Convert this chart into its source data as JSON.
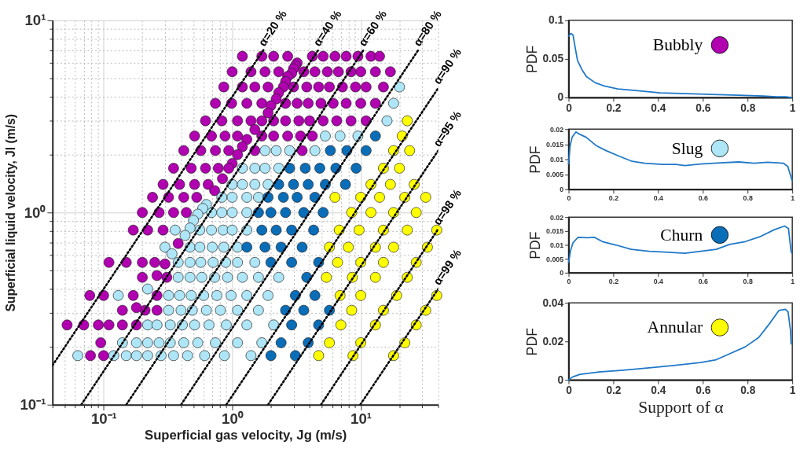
{
  "chart_data": [
    {
      "type": "scatter",
      "xlabel": "Superficial gas velocity, Jg (m/s)",
      "ylabel": "Superficial liquid velocity, Jl (m/s)",
      "log": "xy",
      "grid": true,
      "marker": "circle",
      "xlim": [
        0.04,
        40
      ],
      "ylim": [
        0.1,
        10
      ],
      "xticks": [
        {
          "value": 0.04,
          "label": null
        },
        {
          "value": 0.05,
          "label": null
        },
        {
          "value": 0.06,
          "label": null
        },
        {
          "value": 0.07,
          "label": null
        },
        {
          "value": 0.08,
          "label": null
        },
        {
          "value": 0.09,
          "label": null
        },
        {
          "value": 0.1,
          "label": "10⁻¹"
        },
        {
          "value": 0.2,
          "label": null
        },
        {
          "value": 0.3,
          "label": null
        },
        {
          "value": 0.4,
          "label": null
        },
        {
          "value": 0.5,
          "label": null
        },
        {
          "value": 0.6,
          "label": null
        },
        {
          "value": 0.7,
          "label": null
        },
        {
          "value": 0.8,
          "label": null
        },
        {
          "value": 0.9,
          "label": null
        },
        {
          "value": 1,
          "label": "10⁰"
        },
        {
          "value": 2,
          "label": null
        },
        {
          "value": 3,
          "label": null
        },
        {
          "value": 4,
          "label": null
        },
        {
          "value": 5,
          "label": null
        },
        {
          "value": 6,
          "label": null
        },
        {
          "value": 7,
          "label": null
        },
        {
          "value": 8,
          "label": null
        },
        {
          "value": 9,
          "label": null
        },
        {
          "value": 10,
          "label": "10¹"
        },
        {
          "value": 20,
          "label": null
        },
        {
          "value": 30,
          "label": null
        },
        {
          "value": 40,
          "label": null
        }
      ],
      "yticks": [
        {
          "value": 0.1,
          "label": "10⁻¹"
        },
        {
          "value": 0.2,
          "label": null
        },
        {
          "value": 0.3,
          "label": null
        },
        {
          "value": 0.4,
          "label": null
        },
        {
          "value": 0.5,
          "label": null
        },
        {
          "value": 0.6,
          "label": null
        },
        {
          "value": 0.7,
          "label": null
        },
        {
          "value": 0.8,
          "label": null
        },
        {
          "value": 0.9,
          "label": null
        },
        {
          "value": 1,
          "label": "10⁰"
        },
        {
          "value": 2,
          "label": null
        },
        {
          "value": 3,
          "label": null
        },
        {
          "value": 4,
          "label": null
        },
        {
          "value": 5,
          "label": null
        },
        {
          "value": 6,
          "label": null
        },
        {
          "value": 7,
          "label": null
        },
        {
          "value": 8,
          "label": null
        },
        {
          "value": 9,
          "label": null
        },
        {
          "value": 10,
          "label": "10¹"
        }
      ],
      "series": [
        {
          "type": "scatter",
          "color": "#b000b0",
          "x": [
            1.2,
            1.7,
            2.1,
            2.7,
            4.2,
            5.1,
            6.3,
            7.7,
            9.5,
            12,
            14,
            1.0,
            1.4,
            1.8,
            2.3,
            3.6,
            4.4,
            5.5,
            6.7,
            8.4,
            10,
            13,
            17,
            0.86,
            1.2,
            1.5,
            1.9,
            3.0,
            3.8,
            4.7,
            5.7,
            7.2,
            9.1,
            11,
            15,
            0.74,
            0.99,
            1.3,
            1.7,
            2.6,
            3.2,
            3.9,
            4.9,
            6.1,
            7.7,
            10,
            13,
            0.62,
            0.83,
            1.1,
            1.4,
            2.1,
            2.6,
            3.3,
            4.0,
            5.1,
            6.5,
            8.4,
            11,
            0.51,
            0.69,
            0.88,
            1.1,
            1.7,
            2.1,
            2.7,
            3.4,
            4.2,
            0.42,
            0.57,
            0.74,
            0.94,
            1.5,
            3.5,
            0.35,
            0.48,
            0.62,
            0.78,
            0.29,
            0.39,
            0.51,
            0.65,
            0.24,
            0.32,
            0.42,
            0.53,
            0.2,
            0.27,
            0.35,
            0.44,
            0.17,
            0.22,
            0.29,
            0.11,
            0.15,
            0.2,
            0.25,
            0.2,
            0.31,
            0.078,
            0.1,
            0.17,
            0.26,
            0.14,
            0.21,
            0.26,
            0.052,
            0.07,
            0.091,
            0.11,
            0.14,
            0.18,
            0.095,
            0.079,
            0.1,
            3.2,
            3.1,
            3.0,
            2.9,
            2.7,
            2.6,
            2.5,
            2.3,
            2.2,
            2.0,
            1.9,
            1.7,
            1.5,
            1.3,
            1.2,
            1.1,
            1.0,
            0.94,
            0.84,
            0.73,
            0.38,
            0.3,
            0.26,
            0.18
          ],
          "values": [
            6.5,
            6.5,
            6.5,
            6.5,
            6.5,
            6.5,
            6.5,
            6.5,
            6.5,
            6.5,
            6.5,
            5.4,
            5.4,
            5.4,
            5.4,
            5.4,
            5.4,
            5.4,
            5.4,
            5.4,
            5.4,
            5.4,
            5.4,
            4.5,
            4.5,
            4.5,
            4.5,
            4.5,
            4.5,
            4.5,
            4.5,
            4.5,
            4.5,
            4.5,
            4.5,
            3.7,
            3.7,
            3.7,
            3.7,
            3.7,
            3.7,
            3.7,
            3.7,
            3.7,
            3.7,
            3.7,
            3.7,
            3.0,
            3.0,
            3.0,
            3.0,
            3.0,
            3.0,
            3.0,
            3.0,
            3.0,
            3.0,
            3.0,
            3.0,
            2.5,
            2.5,
            2.5,
            2.5,
            2.5,
            2.5,
            2.5,
            2.5,
            2.5,
            2.1,
            2.1,
            2.1,
            2.1,
            2.1,
            2.1,
            1.7,
            1.7,
            1.7,
            1.7,
            1.4,
            1.4,
            1.4,
            1.4,
            1.2,
            1.2,
            1.2,
            1.2,
            1.0,
            1.0,
            1.0,
            1.0,
            0.81,
            0.81,
            0.81,
            0.55,
            0.55,
            0.55,
            0.55,
            0.46,
            0.46,
            0.37,
            0.37,
            0.37,
            0.37,
            0.31,
            0.31,
            0.31,
            0.26,
            0.26,
            0.26,
            0.26,
            0.26,
            0.26,
            0.21,
            0.18,
            0.18,
            6.0,
            5.8,
            5.6,
            5.3,
            5.1,
            4.8,
            4.5,
            4.2,
            3.9,
            3.6,
            3.3,
            3.0,
            2.7,
            2.4,
            2.2,
            2.0,
            1.8,
            1.7,
            1.5,
            1.3,
            0.69,
            0.54,
            0.47,
            0.32
          ]
        },
        {
          "type": "scatter",
          "color": "#aee6f7",
          "x": [
            20,
            18,
            16,
            5.3,
            6.9,
            9.5,
            1.8,
            2.2,
            2.8,
            4.4,
            1.2,
            1.5,
            1.8,
            2.3,
            1.0,
            1.2,
            1.5,
            1.9,
            0.83,
            1.0,
            1.3,
            1.6,
            0.69,
            0.83,
            1.0,
            1.3,
            0.36,
            0.56,
            0.69,
            0.85,
            1.0,
            1.3,
            0.3,
            0.47,
            0.56,
            0.7,
            0.86,
            1.1,
            0.38,
            0.47,
            0.57,
            0.71,
            0.89,
            1.1,
            1.5,
            0.38,
            0.47,
            0.58,
            0.73,
            0.92,
            1.2,
            1.6,
            2.3,
            0.13,
            0.32,
            0.39,
            0.48,
            0.6,
            0.76,
            0.98,
            1.3,
            1.9,
            0.32,
            0.4,
            0.49,
            0.63,
            0.81,
            1.1,
            1.6,
            0.22,
            0.26,
            0.33,
            0.41,
            0.51,
            0.66,
            0.9,
            1.3,
            2.1,
            0.14,
            0.18,
            0.22,
            0.27,
            0.33,
            0.42,
            0.54,
            0.74,
            1.1,
            1.7,
            0.063,
            0.12,
            0.15,
            0.18,
            0.22,
            0.28,
            0.35,
            0.45,
            0.61,
            0.87,
            1.4,
            0.63,
            0.59,
            0.54,
            0.5,
            0.47,
            0.43,
            0.34,
            0.22
          ],
          "values": [
            4.5,
            3.7,
            3.0,
            2.5,
            2.5,
            2.5,
            2.1,
            2.1,
            2.1,
            2.1,
            1.7,
            1.7,
            1.7,
            1.7,
            1.4,
            1.4,
            1.4,
            1.4,
            1.2,
            1.2,
            1.2,
            1.2,
            1.0,
            1.0,
            1.0,
            1.0,
            0.81,
            0.81,
            0.81,
            0.81,
            0.81,
            0.81,
            0.66,
            0.66,
            0.66,
            0.66,
            0.66,
            0.66,
            0.55,
            0.55,
            0.55,
            0.55,
            0.55,
            0.55,
            0.55,
            0.46,
            0.46,
            0.46,
            0.46,
            0.46,
            0.46,
            0.46,
            0.46,
            0.37,
            0.37,
            0.37,
            0.37,
            0.37,
            0.37,
            0.37,
            0.37,
            0.37,
            0.31,
            0.31,
            0.31,
            0.31,
            0.31,
            0.31,
            0.31,
            0.26,
            0.26,
            0.26,
            0.26,
            0.26,
            0.26,
            0.26,
            0.26,
            0.26,
            0.21,
            0.21,
            0.21,
            0.21,
            0.21,
            0.21,
            0.21,
            0.21,
            0.21,
            0.21,
            0.18,
            0.18,
            0.18,
            0.18,
            0.18,
            0.18,
            0.18,
            0.18,
            0.18,
            0.18,
            0.18,
            1.1,
            1.05,
            0.98,
            0.91,
            0.83,
            0.76,
            0.61,
            0.4
          ]
        },
        {
          "type": "scatter",
          "color": "#0a6db8",
          "x": [
            13,
            5.8,
            7.8,
            11,
            2.8,
            3.7,
            4.8,
            6.4,
            9.2,
            2.3,
            3.0,
            3.9,
            5.3,
            7.6,
            1.9,
            2.5,
            3.2,
            4.4,
            1.6,
            2.0,
            2.6,
            3.6,
            5.1,
            1.7,
            2.2,
            2.9,
            4.3,
            1.3,
            1.8,
            2.4,
            3.5,
            2.0,
            2.9,
            4.7,
            3.8,
            3.1,
            4.4,
            2.6,
            3.6,
            5.7,
            2.9,
            4.7,
            2.4,
            3.9,
            2.0,
            3.1
          ],
          "values": [
            2.5,
            2.1,
            2.1,
            2.1,
            1.7,
            1.7,
            1.7,
            1.7,
            1.7,
            1.4,
            1.4,
            1.4,
            1.4,
            1.4,
            1.2,
            1.2,
            1.2,
            1.2,
            1.0,
            1.0,
            1.0,
            1.0,
            1.0,
            0.81,
            0.81,
            0.81,
            0.81,
            0.66,
            0.66,
            0.66,
            0.66,
            0.55,
            0.55,
            0.55,
            0.46,
            0.37,
            0.37,
            0.31,
            0.31,
            0.31,
            0.26,
            0.26,
            0.21,
            0.21,
            0.18,
            0.18
          ]
        },
        {
          "type": "scatter",
          "color": "#ffff00",
          "x": [
            23,
            21,
            18,
            24,
            15,
            20,
            12,
            17,
            26,
            6.3,
            10,
            14,
            22,
            32,
            8.5,
            12,
            18,
            27,
            6.8,
            9.7,
            15,
            23,
            39,
            5.7,
            8.0,
            13,
            18,
            33,
            6.6,
            10,
            15,
            27,
            5.4,
            8.6,
            13,
            23,
            6.9,
            10,
            19,
            39,
            8.5,
            15,
            32,
            7.0,
            13,
            27,
            5.7,
            10,
            22,
            4.7,
            8.7,
            18
          ],
          "values": [
            3.0,
            2.5,
            2.1,
            2.1,
            1.7,
            1.7,
            1.4,
            1.4,
            1.4,
            1.2,
            1.2,
            1.2,
            1.2,
            1.2,
            1.0,
            1.0,
            1.0,
            1.0,
            0.81,
            0.81,
            0.81,
            0.81,
            0.81,
            0.66,
            0.66,
            0.66,
            0.66,
            0.66,
            0.55,
            0.55,
            0.55,
            0.55,
            0.46,
            0.46,
            0.46,
            0.46,
            0.37,
            0.37,
            0.37,
            0.37,
            0.31,
            0.31,
            0.31,
            0.26,
            0.26,
            0.26,
            0.21,
            0.21,
            0.21,
            0.18,
            0.18,
            0.18
          ]
        },
        {
          "type": "line",
          "name": "α=20 %",
          "color": "#000000",
          "line_style": "dotted",
          "marker": "none",
          "x": [
            0.04,
            1.75
          ],
          "values": [
            0.16,
            7.0
          ]
        },
        {
          "type": "line",
          "name": "α=40 %",
          "color": "#000000",
          "line_style": "dotted",
          "marker": "none",
          "x": [
            0.067,
            4.67
          ],
          "values": [
            0.1,
            7.0
          ]
        },
        {
          "type": "line",
          "name": "α=60 %",
          "color": "#000000",
          "line_style": "dotted",
          "marker": "none",
          "x": [
            0.15,
            10.5
          ],
          "values": [
            0.1,
            7.0
          ]
        },
        {
          "type": "line",
          "name": "α=80 %",
          "color": "#000000",
          "line_style": "dotted",
          "marker": "none",
          "x": [
            0.4,
            28
          ],
          "values": [
            0.1,
            7.0
          ]
        },
        {
          "type": "line",
          "name": "α=90 %",
          "color": "#000000",
          "line_style": "dotted",
          "marker": "none",
          "x": [
            0.9,
            40
          ],
          "values": [
            0.1,
            4.44
          ]
        },
        {
          "type": "line",
          "name": "α=95 %",
          "color": "#000000",
          "line_style": "dotted",
          "marker": "none",
          "x": [
            1.9,
            40
          ],
          "values": [
            0.1,
            2.1
          ]
        },
        {
          "type": "line",
          "name": "α=98 %",
          "color": "#000000",
          "line_style": "dotted",
          "marker": "none",
          "x": [
            4.9,
            40
          ],
          "values": [
            0.1,
            0.82
          ]
        },
        {
          "type": "line",
          "name": "α=99 %",
          "color": "#000000",
          "line_style": "dotted",
          "marker": "none",
          "x": [
            9.9,
            40
          ],
          "values": [
            0.1,
            0.4
          ]
        }
      ]
    },
    {
      "type": "line",
      "ylabel": "PDF",
      "annotations": [
        "Bubbly"
      ],
      "xlim": [
        0,
        1
      ],
      "ylim": [
        0,
        0.1
      ],
      "xticks": [
        0,
        0.2,
        0.4,
        0.6,
        0.8,
        1
      ],
      "yticks": [
        0,
        0.05,
        0.1
      ],
      "x": [
        0,
        0.01,
        0.02,
        0.03,
        0.04,
        0.06,
        0.08,
        0.12,
        0.16,
        0.22,
        0.3,
        0.41,
        0.53,
        0.64,
        0.76,
        0.87,
        0.93,
        0.97,
        1.0
      ],
      "series": [
        {
          "color": "#1f78c8",
          "values": [
            0.079,
            0.083,
            0.081,
            0.064,
            0.048,
            0.036,
            0.027,
            0.019,
            0.015,
            0.011,
            0.009,
            0.006,
            0.005,
            0.004,
            0.003,
            0.002,
            0.001,
            0.001,
            0
          ]
        }
      ]
    },
    {
      "type": "line",
      "ylabel": "PDF",
      "annotations": [
        "Slug"
      ],
      "xlim": [
        0,
        1
      ],
      "ylim": [
        0,
        0.02
      ],
      "xticks": [
        0,
        0.2,
        0.4,
        0.6,
        0.8,
        1
      ],
      "yticks": [
        0,
        0.005,
        0.01,
        0.015,
        0.02
      ],
      "x": [
        0,
        0.007,
        0.016,
        0.033,
        0.047,
        0.079,
        0.124,
        0.17,
        0.227,
        0.284,
        0.34,
        0.42,
        0.48,
        0.52,
        0.59,
        0.68,
        0.76,
        0.83,
        0.89,
        0.96,
        0.98,
        1.0
      ],
      "series": [
        {
          "color": "#1f78c8",
          "values": [
            0.0083,
            0.0145,
            0.0173,
            0.0191,
            0.0184,
            0.0173,
            0.0145,
            0.0128,
            0.011,
            0.0093,
            0.0087,
            0.0083,
            0.0083,
            0.0079,
            0.0084,
            0.0088,
            0.0091,
            0.0087,
            0.009,
            0.0087,
            0.0076,
            0.0027
          ]
        }
      ]
    },
    {
      "type": "line",
      "ylabel": "PDF",
      "annotations": [
        "Churn"
      ],
      "xlim": [
        0,
        1
      ],
      "ylim": [
        0,
        0.02
      ],
      "xticks": [
        0,
        0.2,
        0.4,
        0.6,
        0.8,
        1
      ],
      "yticks": [
        0,
        0.005,
        0.01,
        0.015,
        0.02
      ],
      "x": [
        0,
        0.009,
        0.02,
        0.042,
        0.083,
        0.117,
        0.151,
        0.21,
        0.28,
        0.36,
        0.43,
        0.52,
        0.59,
        0.66,
        0.72,
        0.79,
        0.86,
        0.92,
        0.966,
        0.983,
        0.994,
        0.998
      ],
      "series": [
        {
          "color": "#1f78c8",
          "values": [
            0.0035,
            0.008,
            0.0108,
            0.0127,
            0.0126,
            0.0127,
            0.0112,
            0.01,
            0.0084,
            0.0077,
            0.0074,
            0.007,
            0.0077,
            0.0084,
            0.0102,
            0.0112,
            0.0131,
            0.0155,
            0.0168,
            0.0159,
            0.008,
            0.0069
          ]
        }
      ]
    },
    {
      "type": "line",
      "ylabel": "PDF",
      "xlabel": "Support of α",
      "annotations": [
        "Annular"
      ],
      "xlim": [
        0,
        1
      ],
      "ylim": [
        0,
        0.04
      ],
      "xticks": [
        0,
        0.2,
        0.4,
        0.6,
        0.8,
        1
      ],
      "yticks": [
        0,
        0.02,
        0.04
      ],
      "x": [
        0,
        0.017,
        0.051,
        0.131,
        0.245,
        0.36,
        0.47,
        0.59,
        0.66,
        0.72,
        0.79,
        0.85,
        0.895,
        0.94,
        0.969,
        0.981,
        0.992,
        0.995
      ],
      "series": [
        {
          "color": "#1f78c8",
          "values": [
            0,
            0.0015,
            0.0029,
            0.0041,
            0.0051,
            0.0063,
            0.0075,
            0.009,
            0.0105,
            0.0136,
            0.0172,
            0.022,
            0.0287,
            0.036,
            0.0366,
            0.0354,
            0.0257,
            0.0184
          ]
        }
      ]
    }
  ]
}
